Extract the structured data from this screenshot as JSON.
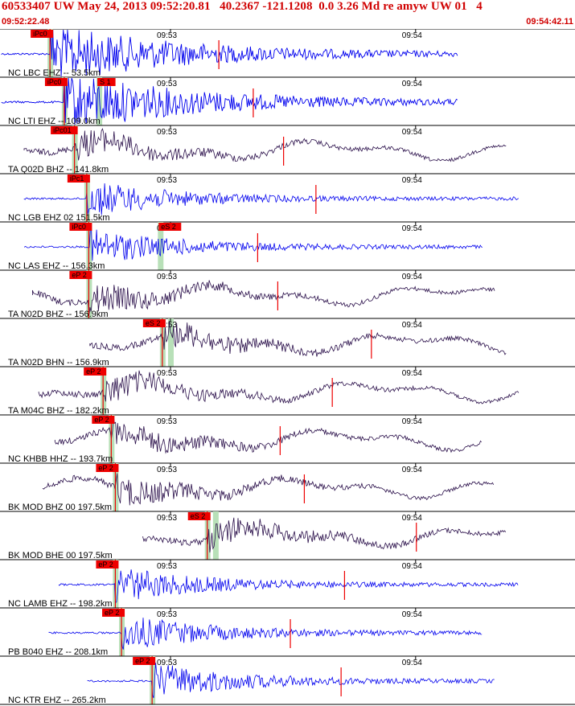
{
  "header": {
    "title": "60533407 UW May 24, 2013 09:52:20.81   40.2367 -121.1208  0.0 3.26 Md re amyw UW 01   4",
    "start_time": "09:52:22.48",
    "end_time": "09:54:42.11"
  },
  "colors": {
    "title": "#d00000",
    "short_period": "#0000ee",
    "broadband": "#2a0f4a",
    "pick": "#ee0000",
    "window": "#b8e0b8"
  },
  "chart_data": {
    "type": "seismogram-record-section",
    "time_axis": {
      "start": "09:52:22.48",
      "end": "09:54:42.11",
      "minute_labels": [
        {
          "label": "09:53",
          "time_s": 37.5
        },
        {
          "label": "09:54",
          "time_s": 97.5
        }
      ]
    },
    "traces": [
      {
        "label": "NC LBC EHZ --  53.5km",
        "pick": "iPc0",
        "pick_s": 8.0,
        "kind": "sp",
        "big": true
      },
      {
        "label": "NC LTI EHZ --  109.0km",
        "pick": "iPc0",
        "pick_s": 11.5,
        "second_pick": "S 1",
        "second_s": 20.0,
        "kind": "sp",
        "big": true
      },
      {
        "label": "TA Q02D BHZ --  141.8km",
        "pick": "iPc01",
        "pick_s": 14.0,
        "kind": "bb"
      },
      {
        "label": "NC LGB EHZ 02 151.5km",
        "pick": "iPc1",
        "pick_s": 17.0,
        "kind": "sp"
      },
      {
        "label": "NC LAS EHZ --  156.3km",
        "pick": "iPc0",
        "pick_s": 17.5,
        "second_pick": "eS 2",
        "second_s": 35.0,
        "kind": "sp"
      },
      {
        "label": "TA N02D BHZ --  156.9km",
        "pick": "eP 2",
        "pick_s": 17.5,
        "kind": "bb"
      },
      {
        "label": "TA N02D BHN --  156.9km",
        "pick": "eS 2",
        "pick_s": 35.5,
        "kind": "bb"
      },
      {
        "label": "TA M04C BHZ --  182.2km",
        "pick": "eP 2",
        "pick_s": 21.0,
        "kind": "bb"
      },
      {
        "label": "NC KHBB HHZ --  193.7km",
        "pick": "eP 2",
        "pick_s": 23.0,
        "kind": "bb"
      },
      {
        "label": "BK MOD BHZ 00 197.5km",
        "pick": "eP 2",
        "pick_s": 24.0,
        "kind": "bb"
      },
      {
        "label": "BK MOD BHE 00 197.5km",
        "pick": "eS 2",
        "pick_s": 46.5,
        "kind": "bb"
      },
      {
        "label": "NC LAMB EHZ --  198.2km",
        "pick": "eP 2",
        "pick_s": 24.0,
        "kind": "sp"
      },
      {
        "label": "PB B040 EHZ --  208.1km",
        "pick": "eP 2",
        "pick_s": 25.5,
        "kind": "sp"
      },
      {
        "label": "NC KTR EHZ --  265.2km",
        "pick": "eP 2",
        "pick_s": 33.0,
        "kind": "sp"
      }
    ]
  }
}
